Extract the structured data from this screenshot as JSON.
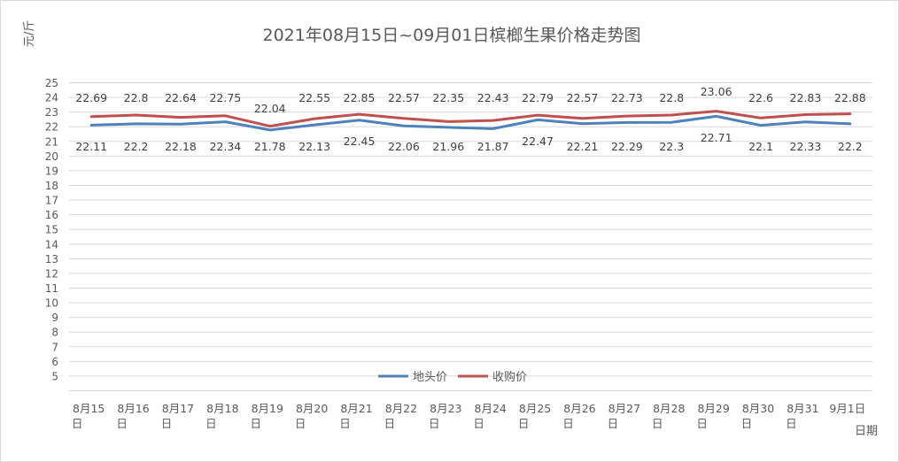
{
  "chart_data": {
    "type": "line",
    "title": "2021年08月15日~09月01日槟榔生果价格走势图",
    "ylabel": "元/斤",
    "xlabel": "日期",
    "ylim": [
      4,
      25
    ],
    "yticks": [
      5,
      6,
      7,
      8,
      9,
      10,
      11,
      12,
      13,
      14,
      15,
      16,
      17,
      18,
      19,
      20,
      21,
      22,
      23,
      24,
      25
    ],
    "grid": true,
    "legend_position": "bottom-center",
    "categories": [
      [
        "8月15",
        "日"
      ],
      [
        "8月16",
        "日"
      ],
      [
        "8月17",
        "日"
      ],
      [
        "8月18",
        "日"
      ],
      [
        "8月19",
        "日"
      ],
      [
        "8月20",
        "日"
      ],
      [
        "8月21",
        "日"
      ],
      [
        "8月22",
        "日"
      ],
      [
        "8月23",
        "日"
      ],
      [
        "8月24",
        "日"
      ],
      [
        "8月25",
        "日"
      ],
      [
        "8月26",
        "日"
      ],
      [
        "8月27",
        "日"
      ],
      [
        "8月28",
        "日"
      ],
      [
        "8月29",
        "日"
      ],
      [
        "8月30",
        "日"
      ],
      [
        "8月31",
        "日"
      ],
      [
        "9月1日",
        ""
      ]
    ],
    "series": [
      {
        "name": "地头价",
        "color": "#4f81bd",
        "values": [
          22.11,
          22.2,
          22.18,
          22.34,
          21.78,
          22.13,
          22.45,
          22.06,
          21.96,
          21.87,
          22.47,
          22.21,
          22.29,
          22.3,
          22.71,
          22.1,
          22.33,
          22.2
        ],
        "labels": [
          "22.11",
          "22.2",
          "22.18",
          "22.34",
          "21.78",
          "22.13",
          "22.45",
          "22.06",
          "21.96",
          "21.87",
          "22.47",
          "22.21",
          "22.29",
          "22.3",
          "22.71",
          "22.1",
          "22.33",
          "22.2"
        ],
        "label_position": "below"
      },
      {
        "name": "收购价",
        "color": "#c0504d",
        "values": [
          22.69,
          22.8,
          22.64,
          22.75,
          22.04,
          22.55,
          22.85,
          22.57,
          22.35,
          22.43,
          22.79,
          22.57,
          22.73,
          22.8,
          23.06,
          22.6,
          22.83,
          22.88
        ],
        "labels": [
          "22.69",
          "22.8",
          "22.64",
          "22.75",
          "22.04",
          "22.55",
          "22.85",
          "22.57",
          "22.35",
          "22.43",
          "22.79",
          "22.57",
          "22.73",
          "22.8",
          "23.06",
          "22.6",
          "22.83",
          "22.88"
        ],
        "label_position": "above"
      }
    ]
  }
}
